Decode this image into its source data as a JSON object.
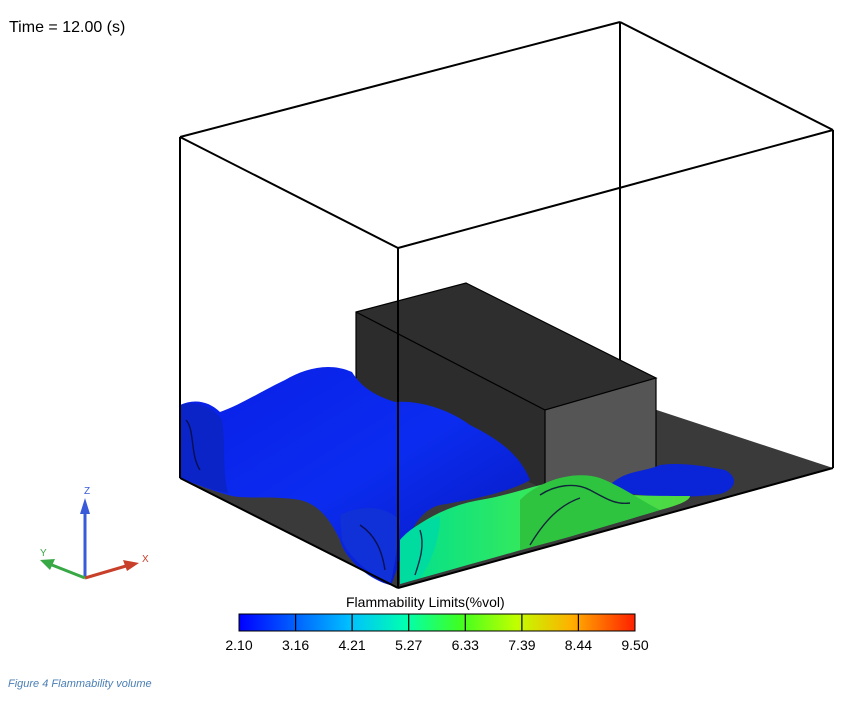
{
  "time_label": "Time = 12.00 (s)",
  "colorbar": {
    "title": "Flammability Limits(%vol)",
    "ticks": [
      "2.10",
      "3.16",
      "4.21",
      "5.27",
      "6.33",
      "7.39",
      "8.44",
      "9.50"
    ],
    "colors": [
      "#0000ff",
      "#0080ff",
      "#00e0e0",
      "#00ff80",
      "#40ff00",
      "#c0ff00",
      "#ffb000",
      "#ff2000"
    ]
  },
  "axes": {
    "x": "X",
    "y": "Y",
    "z": "Z",
    "x_color": "#c8402a",
    "y_color": "#38a845",
    "z_color": "#3a5bd9"
  },
  "caption": "Figure 4  Flammability volume"
}
